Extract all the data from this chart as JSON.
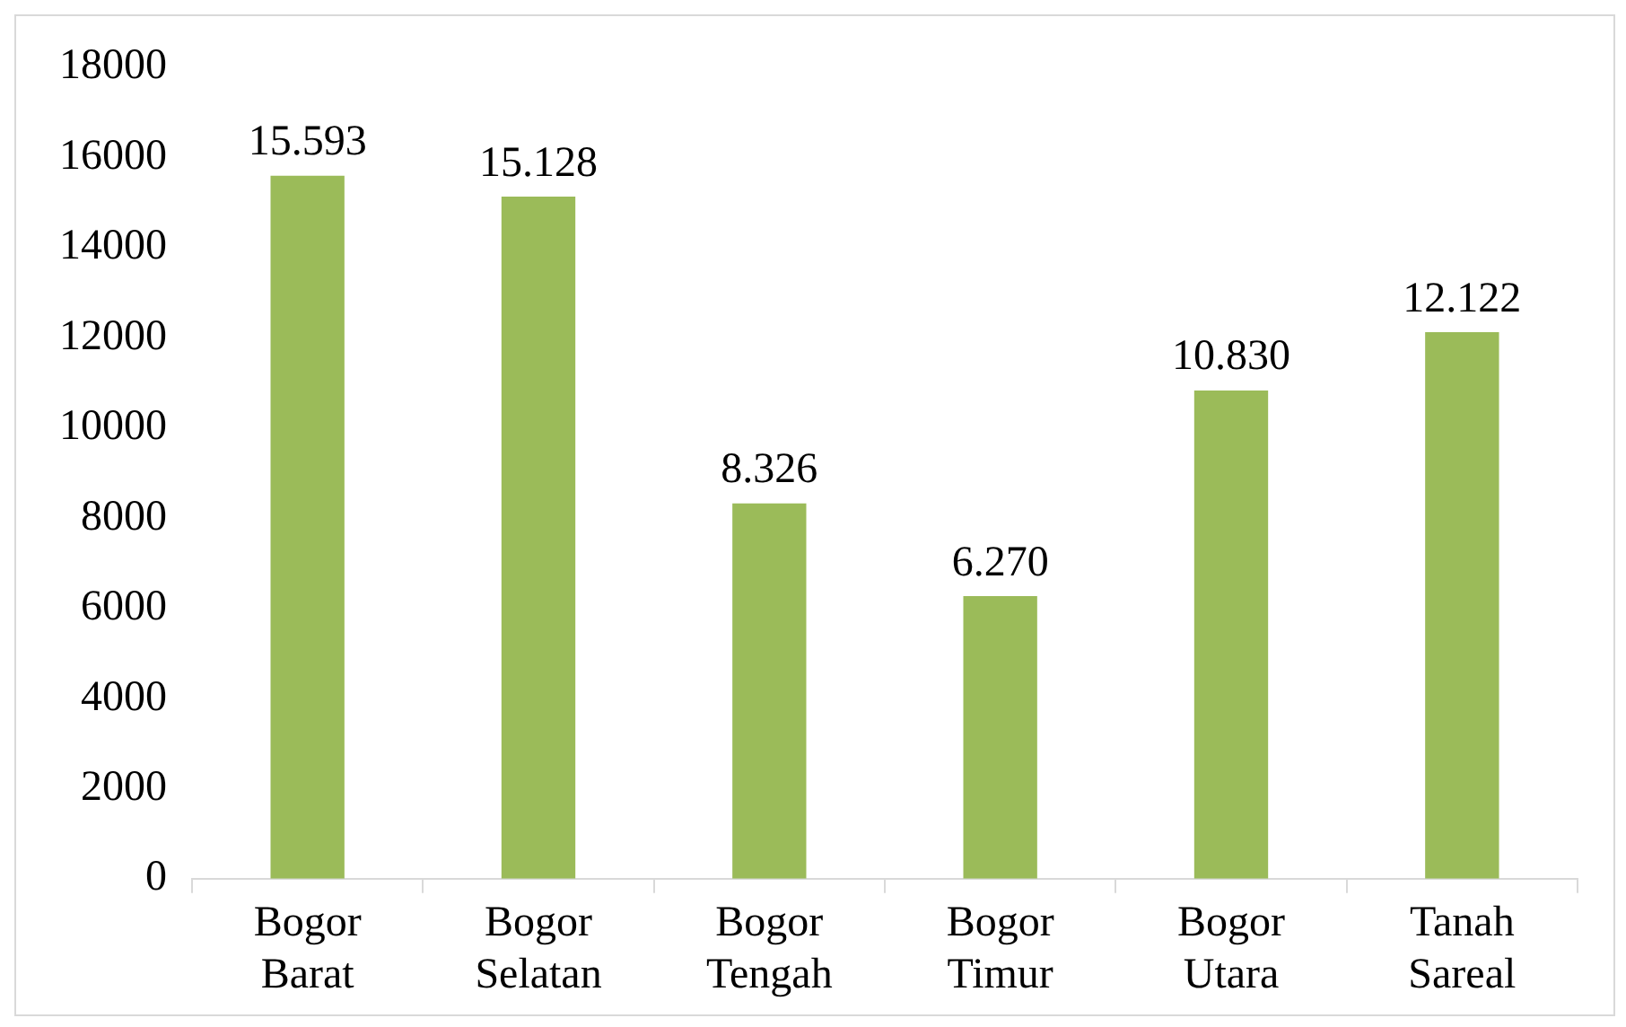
{
  "chart_data": {
    "type": "bar",
    "categories": [
      "Bogor Barat",
      "Bogor Selatan",
      "Bogor Tengah",
      "Bogor Timur",
      "Bogor Utara",
      "Tanah Sareal"
    ],
    "values": [
      15593,
      15128,
      8326,
      6270,
      10830,
      12122
    ],
    "value_labels": [
      "15.593",
      "15.128",
      "8.326",
      "6.270",
      "10.830",
      "12.122"
    ],
    "color": "#9bbb59",
    "ylim": [
      0,
      18000
    ],
    "yticks": [
      0,
      2000,
      4000,
      6000,
      8000,
      10000,
      12000,
      14000,
      16000,
      18000
    ],
    "grid": false,
    "legend": false
  }
}
